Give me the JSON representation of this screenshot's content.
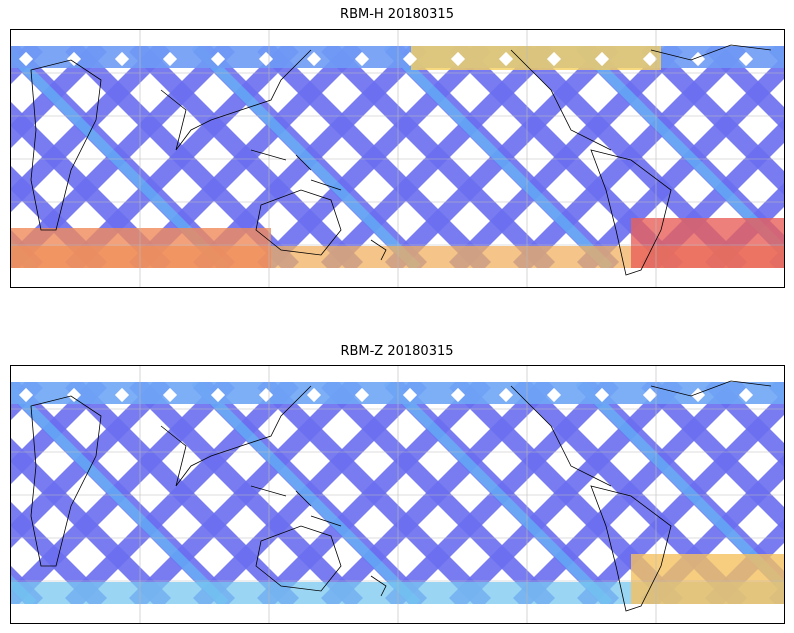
{
  "panels": [
    {
      "title": "RBM-H 20180315",
      "band_colors": {
        "north": "#6f9bf5",
        "south": "#f0b060"
      },
      "hot_zones": [
        {
          "region": "north-central",
          "color": "#f5d060"
        },
        {
          "region": "south-east",
          "color": "#e8605a"
        },
        {
          "region": "south-west",
          "color": "#f08a5a"
        }
      ]
    },
    {
      "title": "RBM-Z 20180315",
      "band_colors": {
        "north": "#6fa6f5",
        "south": "#78c8f0"
      },
      "hot_zones": [
        {
          "region": "south-east",
          "color": "#f5c060"
        }
      ]
    }
  ],
  "colors": {
    "swath_low": "#6a6ef0",
    "swath_mid": "#5fc8f5",
    "swath_high": "#f5e060",
    "swath_max": "#e8605a",
    "coastline": "#000000",
    "grid": "#bbbbbb"
  }
}
